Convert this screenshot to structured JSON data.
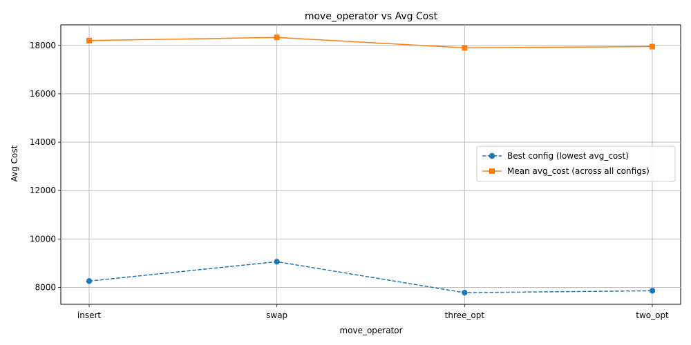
{
  "chart_data": {
    "type": "line",
    "title": "move_operator vs Avg Cost",
    "xlabel": "move_operator",
    "ylabel": "Avg Cost",
    "categories": [
      "insert",
      "swap",
      "three_opt",
      "two_opt"
    ],
    "ylim": [
      7300,
      18850
    ],
    "yticks": [
      8000,
      10000,
      12000,
      14000,
      16000,
      18000
    ],
    "grid": true,
    "legend_position": "center-right",
    "series": [
      {
        "name": "Best config (lowest avg_cost)",
        "values": [
          8260,
          9060,
          7780,
          7860
        ],
        "color": "#1f77b4",
        "line_style": "dashed",
        "marker": "circle"
      },
      {
        "name": "Mean avg_cost (across all configs)",
        "values": [
          18200,
          18330,
          17900,
          17950
        ],
        "color": "#ff7f0e",
        "line_style": "solid",
        "marker": "square"
      }
    ]
  }
}
